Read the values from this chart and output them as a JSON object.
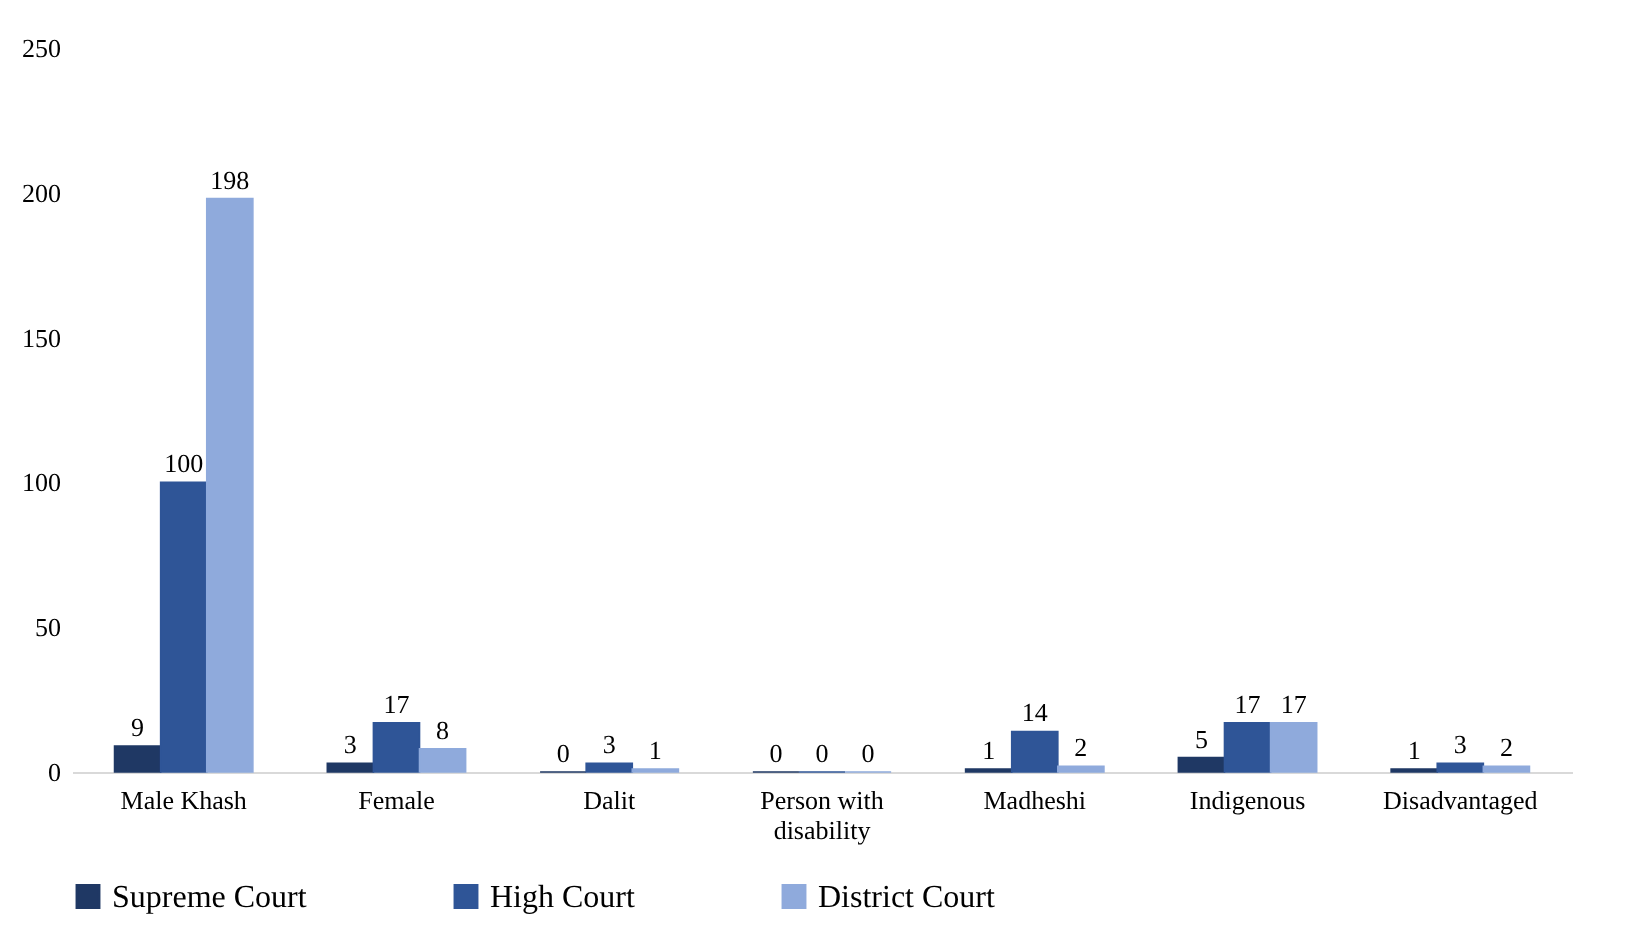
{
  "chart_data": {
    "type": "bar",
    "categories": [
      "Male Khash",
      "Female",
      "Dalit",
      "Person with disability",
      "Madheshi",
      "Indigenous",
      "Disadvantaged"
    ],
    "series": [
      {
        "name": "Supreme Court",
        "color": "#1f3864",
        "values": [
          9,
          3,
          0,
          0,
          1,
          5,
          1
        ]
      },
      {
        "name": "High Court",
        "color": "#2f5597",
        "values": [
          100,
          17,
          3,
          0,
          14,
          17,
          3
        ]
      },
      {
        "name": "District Court",
        "color": "#8faadc",
        "values": [
          198,
          8,
          1,
          0,
          2,
          17,
          2
        ]
      }
    ],
    "ylim": [
      0,
      250
    ],
    "yticks": [
      0,
      50,
      100,
      150,
      200,
      250
    ],
    "grid": false,
    "legend": "bottom",
    "data_labels": true
  }
}
